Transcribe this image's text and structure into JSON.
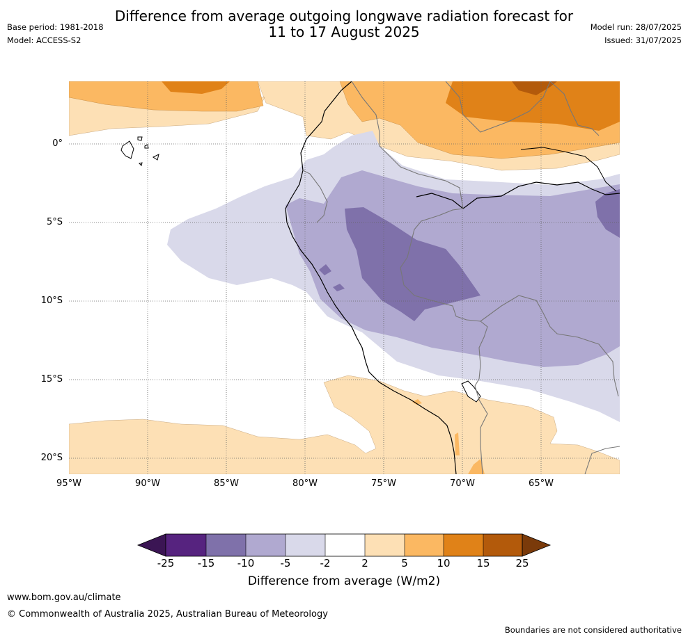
{
  "header": {
    "title_line1": "Difference from average outgoing longwave radiation forecast for",
    "title_line2": "11 to 17 August 2025",
    "base_period": "Base period: 1981-2018",
    "model": "Model: ACCESS-S2",
    "model_run": "Model run: 28/07/2025",
    "issued": "Issued: 31/07/2025"
  },
  "map": {
    "lat_labels": [
      "0°",
      "5°S",
      "10°S",
      "15°S",
      "20°S"
    ],
    "lon_labels": [
      "95°W",
      "90°W",
      "85°W",
      "80°W",
      "75°W",
      "70°W",
      "65°W"
    ],
    "region_lon_range": [
      -95,
      -60
    ],
    "region_lat_range": [
      -21,
      4
    ]
  },
  "colorbar": {
    "title": "Difference from average (W/m2)",
    "ticks": [
      "-25",
      "-15",
      "-10",
      "-5",
      "-2",
      "2",
      "5",
      "10",
      "15",
      "25"
    ],
    "colors": [
      "#3b1554",
      "#56237f",
      "#7f71aa",
      "#b0a9d0",
      "#d9d9ea",
      "#ffffff",
      "#fde0b5",
      "#fbb862",
      "#e08218",
      "#b35a0b",
      "#7a3a0a"
    ]
  },
  "footer": {
    "website": "www.bom.gov.au/climate",
    "copyright": "© Commonwealth of Australia 2025, Australian Bureau of Meteorology",
    "disclaimer": "Boundaries are not considered authoritative"
  }
}
